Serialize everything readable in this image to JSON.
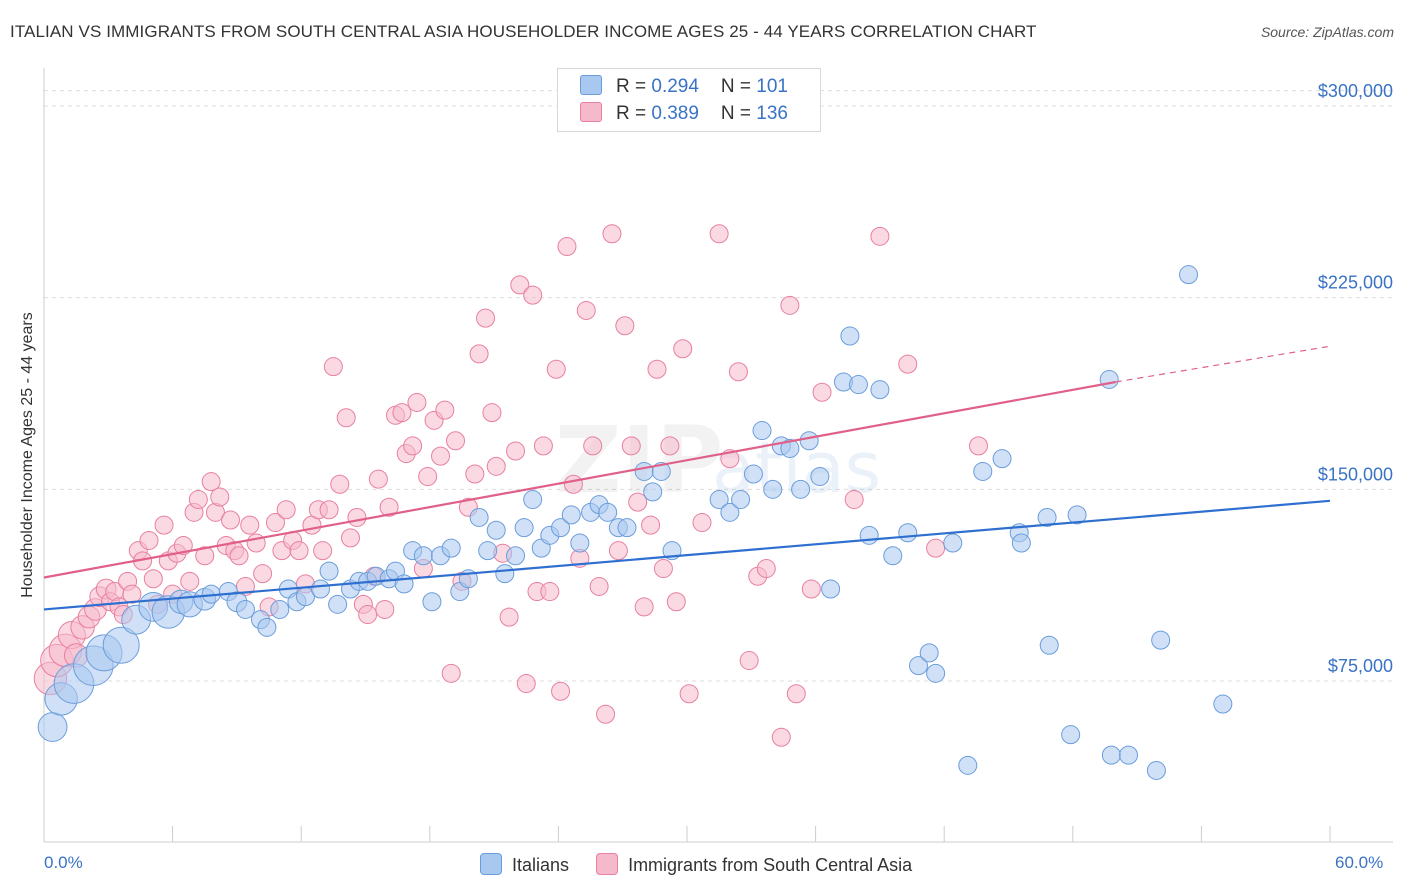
{
  "header": {
    "title": "ITALIAN VS IMMIGRANTS FROM SOUTH CENTRAL ASIA HOUSEHOLDER INCOME AGES 25 - 44 YEARS CORRELATION CHART",
    "source": "Source: ZipAtlas.com"
  },
  "legend": {
    "rows": [
      {
        "r_label": "R = ",
        "r_value": "0.294",
        "n_label": "N = ",
        "n_value": "101"
      },
      {
        "r_label": "R = ",
        "r_value": "0.389",
        "n_label": "N = ",
        "n_value": "136"
      }
    ]
  },
  "watermark": {
    "zip": "ZIP",
    "atlas": "atlas"
  },
  "colors": {
    "blue_fill": "#a9c8f0",
    "blue_stroke": "#6b9ddb",
    "blue_line": "#2f6fd0",
    "pink_fill": "#f6b9cc",
    "pink_stroke": "#e8809f",
    "pink_line": "#e0608a",
    "tick_text": "#3a73c4",
    "grid": "#dddddd"
  },
  "chart_data": {
    "type": "scatter",
    "title": "ITALIAN VS IMMIGRANTS FROM SOUTH CENTRAL ASIA HOUSEHOLDER INCOME AGES 25 - 44 YEARS CORRELATION CHART",
    "xlabel": "",
    "ylabel": "Householder Income Ages 25 - 44 years",
    "xlim": [
      0,
      60
    ],
    "ylim": [
      12000,
      318000
    ],
    "x_tick_labels": [
      "0.0%",
      "60.0%"
    ],
    "y_ticks": [
      75000,
      150000,
      225000,
      300000
    ],
    "y_tick_labels": [
      "$75,000",
      "$150,000",
      "$225,000",
      "$300,000"
    ],
    "grid": true,
    "legend_position": "top-center",
    "series": [
      {
        "name": "Italians",
        "r": 0.294,
        "n": 101,
        "trend": {
          "x0": 0,
          "y0": 103000,
          "x1": 60,
          "y1": 145500
        },
        "points": [
          [
            0.4,
            57000,
            1.6
          ],
          [
            0.8,
            68000,
            1.8
          ],
          [
            1.4,
            74000,
            2.2
          ],
          [
            2.3,
            81000,
            2.2
          ],
          [
            2.8,
            86000,
            2.0
          ],
          [
            3.6,
            89000,
            2.0
          ],
          [
            4.3,
            99000,
            1.6
          ],
          [
            5.1,
            104000,
            1.6
          ],
          [
            5.8,
            102000,
            1.8
          ],
          [
            6.4,
            106000,
            1.3
          ],
          [
            6.8,
            105000,
            1.4
          ],
          [
            7.5,
            107000,
            1.2
          ],
          [
            7.8,
            109000,
            1.0
          ],
          [
            8.6,
            110000,
            1.0
          ],
          [
            9.0,
            106000,
            1.1
          ],
          [
            9.4,
            103000,
            1.0
          ],
          [
            10.1,
            99000,
            1.0
          ],
          [
            10.4,
            96000,
            1.0
          ],
          [
            11.0,
            103000,
            1.0
          ],
          [
            11.4,
            111000,
            1.0
          ],
          [
            11.8,
            106000,
            1.0
          ],
          [
            12.2,
            108000,
            1.0
          ],
          [
            12.9,
            111000,
            1.0
          ],
          [
            13.3,
            118000,
            1.0
          ],
          [
            13.7,
            105000,
            1.0
          ],
          [
            14.3,
            111000,
            1.0
          ],
          [
            14.7,
            114000,
            1.0
          ],
          [
            15.1,
            114000,
            1.0
          ],
          [
            15.5,
            116000,
            1.0
          ],
          [
            16.1,
            115000,
            1.0
          ],
          [
            16.4,
            118000,
            1.0
          ],
          [
            16.8,
            113000,
            1.0
          ],
          [
            17.2,
            126000,
            1.0
          ],
          [
            17.7,
            124000,
            1.0
          ],
          [
            18.1,
            106000,
            1.0
          ],
          [
            18.5,
            124000,
            1.0
          ],
          [
            19.0,
            127000,
            1.0
          ],
          [
            19.4,
            110000,
            1.0
          ],
          [
            19.8,
            115000,
            1.0
          ],
          [
            20.3,
            139000,
            1.0
          ],
          [
            20.7,
            126000,
            1.0
          ],
          [
            21.1,
            134000,
            1.0
          ],
          [
            21.5,
            117000,
            1.0
          ],
          [
            22.0,
            124000,
            1.0
          ],
          [
            22.4,
            135000,
            1.0
          ],
          [
            22.8,
            146000,
            1.0
          ],
          [
            23.2,
            127000,
            1.0
          ],
          [
            23.6,
            132000,
            1.0
          ],
          [
            24.1,
            135000,
            1.0
          ],
          [
            24.6,
            140000,
            1.0
          ],
          [
            25.0,
            129000,
            1.0
          ],
          [
            25.5,
            141000,
            1.0
          ],
          [
            25.9,
            144000,
            1.0
          ],
          [
            26.3,
            141000,
            1.0
          ],
          [
            26.8,
            135000,
            1.0
          ],
          [
            27.2,
            135000,
            1.0
          ],
          [
            28.0,
            157000,
            1.0
          ],
          [
            28.4,
            149000,
            1.0
          ],
          [
            28.8,
            157000,
            1.0
          ],
          [
            29.3,
            126000,
            1.0
          ],
          [
            31.5,
            146000,
            1.0
          ],
          [
            32.0,
            141000,
            1.0
          ],
          [
            32.5,
            146000,
            1.0
          ],
          [
            33.1,
            156000,
            1.0
          ],
          [
            33.5,
            173000,
            1.0
          ],
          [
            34.0,
            150000,
            1.0
          ],
          [
            34.4,
            167000,
            1.0
          ],
          [
            34.8,
            166000,
            1.0
          ],
          [
            35.3,
            150000,
            1.0
          ],
          [
            35.7,
            169000,
            1.0
          ],
          [
            36.2,
            155000,
            1.0
          ],
          [
            36.7,
            111000,
            1.0
          ],
          [
            37.3,
            192000,
            1.0
          ],
          [
            37.6,
            210000,
            1.0
          ],
          [
            38.0,
            191000,
            1.0
          ],
          [
            38.5,
            132000,
            1.0
          ],
          [
            39.0,
            189000,
            1.0
          ],
          [
            39.6,
            124000,
            1.0
          ],
          [
            40.3,
            133000,
            1.0
          ],
          [
            40.8,
            81000,
            1.0
          ],
          [
            41.3,
            86000,
            1.0
          ],
          [
            41.6,
            78000,
            1.0
          ],
          [
            42.4,
            129000,
            1.0
          ],
          [
            43.1,
            42000,
            1.0
          ],
          [
            43.8,
            157000,
            1.0
          ],
          [
            44.7,
            162000,
            1.0
          ],
          [
            45.5,
            133000,
            1.0
          ],
          [
            45.6,
            129000,
            1.0
          ],
          [
            46.8,
            139000,
            1.0
          ],
          [
            46.9,
            89000,
            1.0
          ],
          [
            48.2,
            140000,
            1.0
          ],
          [
            47.9,
            54000,
            1.0
          ],
          [
            49.7,
            193000,
            1.0
          ],
          [
            49.8,
            46000,
            1.0
          ],
          [
            50.6,
            46000,
            1.0
          ],
          [
            51.9,
            40000,
            1.0
          ],
          [
            52.1,
            91000,
            1.0
          ],
          [
            53.4,
            234000,
            1.0
          ],
          [
            55.0,
            66000,
            1.0
          ]
        ]
      },
      {
        "name": "Immigrants from South Central Asia",
        "r": 0.389,
        "n": 136,
        "trend": {
          "x0": 0,
          "y0": 115500,
          "x1": 50,
          "y1": 192000,
          "dash_x1": 60,
          "dash_y1": 206000
        },
        "points": [
          [
            0.3,
            76000,
            1.8
          ],
          [
            0.6,
            83000,
            1.8
          ],
          [
            1.0,
            87000,
            1.8
          ],
          [
            1.3,
            93000,
            1.5
          ],
          [
            1.5,
            85000,
            1.3
          ],
          [
            1.8,
            96000,
            1.3
          ],
          [
            2.1,
            100000,
            1.2
          ],
          [
            2.4,
            103000,
            1.2
          ],
          [
            2.6,
            108000,
            1.1
          ],
          [
            2.9,
            111000,
            1.1
          ],
          [
            3.1,
            106000,
            1.0
          ],
          [
            3.3,
            110000,
            1.0
          ],
          [
            3.5,
            104000,
            1.0
          ],
          [
            3.7,
            101000,
            1.0
          ],
          [
            3.9,
            114000,
            1.0
          ],
          [
            4.1,
            109000,
            1.0
          ],
          [
            4.4,
            126000,
            1.0
          ],
          [
            4.6,
            122000,
            1.0
          ],
          [
            4.9,
            130000,
            1.0
          ],
          [
            5.1,
            115000,
            1.0
          ],
          [
            5.3,
            105000,
            1.0
          ],
          [
            5.6,
            136000,
            1.0
          ],
          [
            5.8,
            122000,
            1.0
          ],
          [
            6.0,
            109000,
            1.0
          ],
          [
            6.2,
            125000,
            1.0
          ],
          [
            6.5,
            128000,
            1.0
          ],
          [
            6.8,
            114000,
            1.0
          ],
          [
            7.0,
            141000,
            1.0
          ],
          [
            7.2,
            146000,
            1.0
          ],
          [
            7.5,
            124000,
            1.0
          ],
          [
            7.8,
            153000,
            1.0
          ],
          [
            8.0,
            141000,
            1.0
          ],
          [
            8.2,
            147000,
            1.0
          ],
          [
            8.5,
            128000,
            1.0
          ],
          [
            8.7,
            138000,
            1.0
          ],
          [
            8.9,
            126000,
            1.0
          ],
          [
            9.1,
            124000,
            1.0
          ],
          [
            9.4,
            112000,
            1.0
          ],
          [
            9.6,
            136000,
            1.0
          ],
          [
            9.9,
            129000,
            1.0
          ],
          [
            10.2,
            117000,
            1.0
          ],
          [
            10.5,
            104000,
            1.0
          ],
          [
            10.8,
            137000,
            1.0
          ],
          [
            11.1,
            126000,
            1.0
          ],
          [
            11.3,
            142000,
            1.0
          ],
          [
            11.6,
            130000,
            1.0
          ],
          [
            11.9,
            126000,
            1.0
          ],
          [
            12.2,
            113000,
            1.0
          ],
          [
            12.5,
            136000,
            1.0
          ],
          [
            12.8,
            142000,
            1.0
          ],
          [
            13.0,
            126000,
            1.0
          ],
          [
            13.3,
            142000,
            1.0
          ],
          [
            13.5,
            198000,
            1.0
          ],
          [
            13.8,
            152000,
            1.0
          ],
          [
            14.1,
            178000,
            1.0
          ],
          [
            14.3,
            131000,
            1.0
          ],
          [
            14.6,
            139000,
            1.0
          ],
          [
            14.9,
            105000,
            1.0
          ],
          [
            15.1,
            101000,
            1.0
          ],
          [
            15.4,
            116000,
            1.0
          ],
          [
            15.6,
            154000,
            1.0
          ],
          [
            15.9,
            103000,
            1.0
          ],
          [
            16.1,
            143000,
            1.0
          ],
          [
            16.4,
            179000,
            1.0
          ],
          [
            16.7,
            180000,
            1.0
          ],
          [
            16.9,
            164000,
            1.0
          ],
          [
            17.2,
            167000,
            1.0
          ],
          [
            17.4,
            184000,
            1.0
          ],
          [
            17.7,
            119000,
            1.0
          ],
          [
            17.9,
            155000,
            1.0
          ],
          [
            18.2,
            177000,
            1.0
          ],
          [
            18.5,
            163000,
            1.0
          ],
          [
            18.7,
            181000,
            1.0
          ],
          [
            19.0,
            78000,
            1.0
          ],
          [
            19.2,
            169000,
            1.0
          ],
          [
            19.5,
            114000,
            1.0
          ],
          [
            19.8,
            143000,
            1.0
          ],
          [
            20.1,
            156000,
            1.0
          ],
          [
            20.3,
            203000,
            1.0
          ],
          [
            20.6,
            217000,
            1.0
          ],
          [
            20.9,
            180000,
            1.0
          ],
          [
            21.1,
            159000,
            1.0
          ],
          [
            21.4,
            125000,
            1.0
          ],
          [
            21.7,
            100000,
            1.0
          ],
          [
            22.0,
            165000,
            1.0
          ],
          [
            22.2,
            230000,
            1.0
          ],
          [
            22.5,
            74000,
            1.0
          ],
          [
            22.8,
            226000,
            1.0
          ],
          [
            23.0,
            110000,
            1.0
          ],
          [
            23.3,
            167000,
            1.0
          ],
          [
            23.6,
            110000,
            1.0
          ],
          [
            23.9,
            197000,
            1.0
          ],
          [
            24.1,
            71000,
            1.0
          ],
          [
            24.4,
            245000,
            1.0
          ],
          [
            24.7,
            152000,
            1.0
          ],
          [
            25.0,
            123000,
            1.0
          ],
          [
            25.3,
            220000,
            1.0
          ],
          [
            25.6,
            167000,
            1.0
          ],
          [
            25.9,
            112000,
            1.0
          ],
          [
            26.2,
            62000,
            1.0
          ],
          [
            26.5,
            250000,
            1.0
          ],
          [
            26.8,
            126000,
            1.0
          ],
          [
            27.1,
            214000,
            1.0
          ],
          [
            27.4,
            167000,
            1.0
          ],
          [
            27.7,
            145000,
            1.0
          ],
          [
            28.0,
            104000,
            1.0
          ],
          [
            28.3,
            136000,
            1.0
          ],
          [
            28.6,
            197000,
            1.0
          ],
          [
            28.9,
            119000,
            1.0
          ],
          [
            29.2,
            167000,
            1.0
          ],
          [
            29.5,
            106000,
            1.0
          ],
          [
            29.8,
            205000,
            1.0
          ],
          [
            30.1,
            70000,
            1.0
          ],
          [
            30.7,
            137000,
            1.0
          ],
          [
            31.5,
            250000,
            1.0
          ],
          [
            32.0,
            162000,
            1.0
          ],
          [
            32.4,
            196000,
            1.0
          ],
          [
            32.9,
            83000,
            1.0
          ],
          [
            33.3,
            116000,
            1.0
          ],
          [
            33.7,
            119000,
            1.0
          ],
          [
            34.4,
            53000,
            1.0
          ],
          [
            34.8,
            222000,
            1.0
          ],
          [
            35.1,
            70000,
            1.0
          ],
          [
            35.8,
            111000,
            1.0
          ],
          [
            36.3,
            188000,
            1.0
          ],
          [
            37.8,
            146000,
            1.0
          ],
          [
            39.0,
            249000,
            1.0
          ],
          [
            40.3,
            199000,
            1.0
          ],
          [
            43.6,
            167000,
            1.0
          ],
          [
            41.6,
            127000,
            1.0
          ]
        ]
      }
    ]
  }
}
